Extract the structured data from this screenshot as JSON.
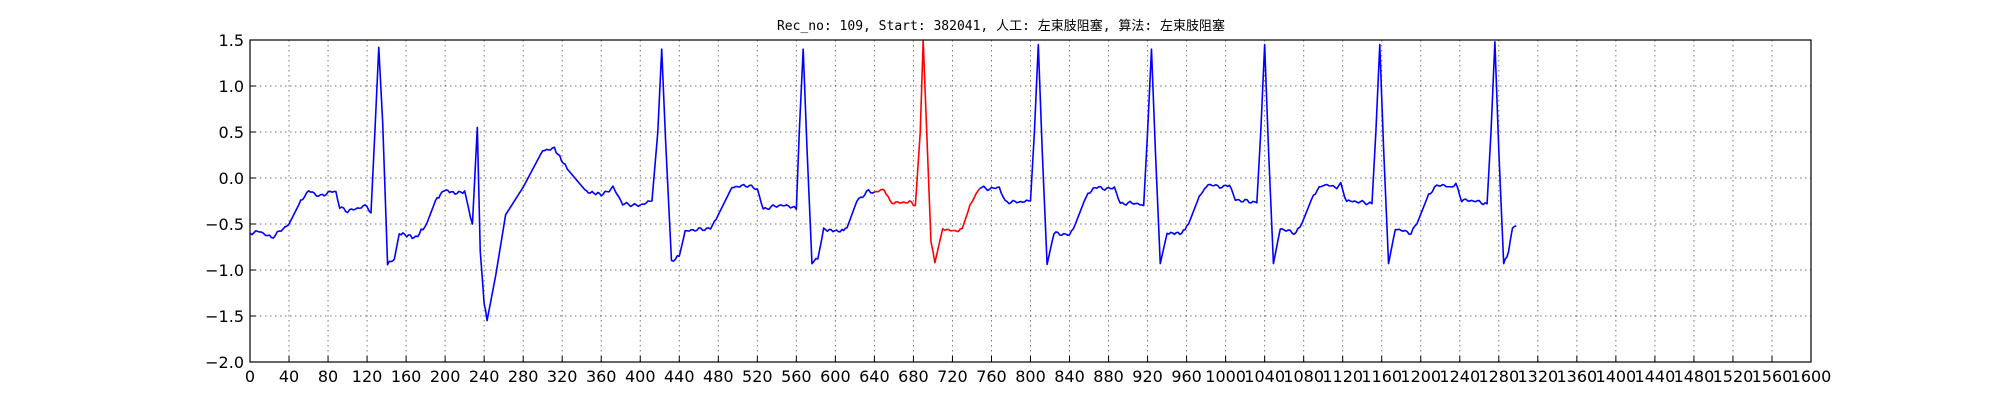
{
  "chart_data": {
    "type": "line",
    "title": "Rec_no: 109, Start: 382041, 人工: 左束肢阻塞, 算法: 左束肢阻塞",
    "xlabel": "",
    "ylabel": "",
    "xlim": [
      0,
      1600
    ],
    "ylim": [
      -2.0,
      1.5
    ],
    "grid": true,
    "x_ticks": [
      0,
      40,
      80,
      120,
      160,
      200,
      240,
      280,
      320,
      360,
      400,
      440,
      480,
      520,
      560,
      600,
      640,
      680,
      720,
      760,
      800,
      840,
      880,
      920,
      960,
      1000,
      1040,
      1080,
      1120,
      1160,
      1200,
      1240,
      1280,
      1320,
      1360,
      1400,
      1440,
      1480,
      1520,
      1560,
      1600
    ],
    "x_tick_labels": [
      "0",
      "40",
      "80",
      "120",
      "160",
      "200",
      "240",
      "280",
      "320",
      "360",
      "400",
      "440",
      "480",
      "520",
      "560",
      "600",
      "640",
      "680",
      "720",
      "760",
      "800",
      "840",
      "880",
      "920",
      "960",
      "1000",
      "1040",
      "1080",
      "1120",
      "1160",
      "1200",
      "1240",
      "1280",
      "1320",
      "1360",
      "1400",
      "1440",
      "1480",
      "1520",
      "1560",
      "1600"
    ],
    "y_ticks": [
      -2.0,
      -1.5,
      -1.0,
      -0.5,
      0.0,
      0.5,
      1.0,
      1.5
    ],
    "y_tick_labels": [
      "−2.0",
      "−1.5",
      "−1.0",
      "−0.5",
      "0.0",
      "0.5",
      "1.0",
      "1.5"
    ],
    "series_keypoints": [
      {
        "x": 0,
        "y": -0.6
      },
      {
        "x": 10,
        "y": -0.58
      },
      {
        "x": 22,
        "y": -0.65
      },
      {
        "x": 40,
        "y": -0.5
      },
      {
        "x": 52,
        "y": -0.25
      },
      {
        "x": 60,
        "y": -0.14
      },
      {
        "x": 72,
        "y": -0.2
      },
      {
        "x": 82,
        "y": -0.15
      },
      {
        "x": 88,
        "y": -0.15
      },
      {
        "x": 92,
        "y": -0.32
      },
      {
        "x": 100,
        "y": -0.36
      },
      {
        "x": 120,
        "y": -0.3
      },
      {
        "x": 124,
        "y": -0.38
      },
      {
        "x": 128,
        "y": 0.5
      },
      {
        "x": 132,
        "y": 1.42
      },
      {
        "x": 136,
        "y": 0.6
      },
      {
        "x": 141,
        "y": -0.93
      },
      {
        "x": 148,
        "y": -0.88
      },
      {
        "x": 153,
        "y": -0.6
      },
      {
        "x": 170,
        "y": -0.65
      },
      {
        "x": 181,
        "y": -0.5
      },
      {
        "x": 190,
        "y": -0.25
      },
      {
        "x": 199,
        "y": -0.13
      },
      {
        "x": 212,
        "y": -0.17
      },
      {
        "x": 220,
        "y": -0.14
      },
      {
        "x": 226,
        "y": -0.42
      },
      {
        "x": 228,
        "y": -0.5
      },
      {
        "x": 233,
        "y": 0.55
      },
      {
        "x": 236,
        "y": -0.8
      },
      {
        "x": 240,
        "y": -1.35
      },
      {
        "x": 243,
        "y": -1.55
      },
      {
        "x": 252,
        "y": -1.05
      },
      {
        "x": 262,
        "y": -0.4
      },
      {
        "x": 280,
        "y": -0.1
      },
      {
        "x": 300,
        "y": 0.3
      },
      {
        "x": 312,
        "y": 0.32
      },
      {
        "x": 325,
        "y": 0.1
      },
      {
        "x": 345,
        "y": -0.15
      },
      {
        "x": 362,
        "y": -0.18
      },
      {
        "x": 372,
        "y": -0.1
      },
      {
        "x": 382,
        "y": -0.28
      },
      {
        "x": 398,
        "y": -0.3
      },
      {
        "x": 412,
        "y": -0.25
      },
      {
        "x": 418,
        "y": 0.5
      },
      {
        "x": 422,
        "y": 1.4
      },
      {
        "x": 426,
        "y": 0.4
      },
      {
        "x": 432,
        "y": -0.9
      },
      {
        "x": 440,
        "y": -0.85
      },
      {
        "x": 446,
        "y": -0.58
      },
      {
        "x": 458,
        "y": -0.56
      },
      {
        "x": 472,
        "y": -0.55
      },
      {
        "x": 480,
        "y": -0.4
      },
      {
        "x": 494,
        "y": -0.1
      },
      {
        "x": 510,
        "y": -0.08
      },
      {
        "x": 520,
        "y": -0.12
      },
      {
        "x": 526,
        "y": -0.34
      },
      {
        "x": 540,
        "y": -0.3
      },
      {
        "x": 552,
        "y": -0.3
      },
      {
        "x": 560,
        "y": -0.34
      },
      {
        "x": 563,
        "y": 0.5
      },
      {
        "x": 567,
        "y": 1.4
      },
      {
        "x": 571,
        "y": 0.3
      },
      {
        "x": 576,
        "y": -0.92
      },
      {
        "x": 582,
        "y": -0.88
      },
      {
        "x": 588,
        "y": -0.56
      },
      {
        "x": 605,
        "y": -0.58
      },
      {
        "x": 612,
        "y": -0.54
      },
      {
        "x": 622,
        "y": -0.25
      },
      {
        "x": 634,
        "y": -0.14
      },
      {
        "x": 640,
        "y": -0.16
      },
      {
        "x": 650,
        "y": -0.12
      },
      {
        "x": 656,
        "y": -0.26
      },
      {
        "x": 664,
        "y": -0.27
      },
      {
        "x": 676,
        "y": -0.26
      },
      {
        "x": 682,
        "y": -0.3
      },
      {
        "x": 687,
        "y": 0.5
      },
      {
        "x": 690,
        "y": 1.5
      },
      {
        "x": 694,
        "y": 0.4
      },
      {
        "x": 698,
        "y": -0.7
      },
      {
        "x": 702,
        "y": -0.92
      },
      {
        "x": 710,
        "y": -0.55
      },
      {
        "x": 722,
        "y": -0.58
      },
      {
        "x": 730,
        "y": -0.55
      },
      {
        "x": 738,
        "y": -0.3
      },
      {
        "x": 748,
        "y": -0.1
      },
      {
        "x": 758,
        "y": -0.12
      },
      {
        "x": 768,
        "y": -0.1
      },
      {
        "x": 774,
        "y": -0.26
      },
      {
        "x": 790,
        "y": -0.26
      },
      {
        "x": 800,
        "y": -0.25
      },
      {
        "x": 804,
        "y": 0.5
      },
      {
        "x": 808,
        "y": 1.45
      },
      {
        "x": 812,
        "y": 0.3
      },
      {
        "x": 817,
        "y": -0.94
      },
      {
        "x": 824,
        "y": -0.6
      },
      {
        "x": 840,
        "y": -0.62
      },
      {
        "x": 846,
        "y": -0.5
      },
      {
        "x": 857,
        "y": -0.2
      },
      {
        "x": 866,
        "y": -0.1
      },
      {
        "x": 880,
        "y": -0.12
      },
      {
        "x": 886,
        "y": -0.1
      },
      {
        "x": 892,
        "y": -0.28
      },
      {
        "x": 906,
        "y": -0.27
      },
      {
        "x": 916,
        "y": -0.3
      },
      {
        "x": 920,
        "y": 0.5
      },
      {
        "x": 924,
        "y": 1.4
      },
      {
        "x": 928,
        "y": 0.3
      },
      {
        "x": 933,
        "y": -0.93
      },
      {
        "x": 940,
        "y": -0.6
      },
      {
        "x": 955,
        "y": -0.6
      },
      {
        "x": 962,
        "y": -0.5
      },
      {
        "x": 973,
        "y": -0.2
      },
      {
        "x": 982,
        "y": -0.07
      },
      {
        "x": 998,
        "y": -0.1
      },
      {
        "x": 1004,
        "y": -0.07
      },
      {
        "x": 1010,
        "y": -0.24
      },
      {
        "x": 1022,
        "y": -0.25
      },
      {
        "x": 1032,
        "y": -0.27
      },
      {
        "x": 1036,
        "y": 0.5
      },
      {
        "x": 1040,
        "y": 1.45
      },
      {
        "x": 1044,
        "y": 0.3
      },
      {
        "x": 1049,
        "y": -0.93
      },
      {
        "x": 1056,
        "y": -0.55
      },
      {
        "x": 1072,
        "y": -0.6
      },
      {
        "x": 1078,
        "y": -0.5
      },
      {
        "x": 1090,
        "y": -0.18
      },
      {
        "x": 1100,
        "y": -0.07
      },
      {
        "x": 1114,
        "y": -0.1
      },
      {
        "x": 1118,
        "y": -0.07
      },
      {
        "x": 1124,
        "y": -0.25
      },
      {
        "x": 1138,
        "y": -0.26
      },
      {
        "x": 1150,
        "y": -0.28
      },
      {
        "x": 1154,
        "y": 0.5
      },
      {
        "x": 1158,
        "y": 1.45
      },
      {
        "x": 1162,
        "y": 0.3
      },
      {
        "x": 1167,
        "y": -0.93
      },
      {
        "x": 1174,
        "y": -0.55
      },
      {
        "x": 1190,
        "y": -0.6
      },
      {
        "x": 1196,
        "y": -0.5
      },
      {
        "x": 1208,
        "y": -0.18
      },
      {
        "x": 1218,
        "y": -0.07
      },
      {
        "x": 1230,
        "y": -0.1
      },
      {
        "x": 1236,
        "y": -0.07
      },
      {
        "x": 1242,
        "y": -0.24
      },
      {
        "x": 1256,
        "y": -0.25
      },
      {
        "x": 1268,
        "y": -0.28
      },
      {
        "x": 1272,
        "y": 0.5
      },
      {
        "x": 1276,
        "y": 1.48
      },
      {
        "x": 1280,
        "y": 0.3
      },
      {
        "x": 1285,
        "y": -0.93
      },
      {
        "x": 1290,
        "y": -0.8
      },
      {
        "x": 1294,
        "y": -0.53
      },
      {
        "x": 1298,
        "y": -0.52
      }
    ],
    "series": [
      {
        "color": "#0000ff",
        "x_range": [
          0,
          640
        ]
      },
      {
        "color": "#ff0000",
        "x_range": [
          640,
          748
        ]
      },
      {
        "color": "#0000ff",
        "x_range": [
          748,
          1298
        ]
      }
    ]
  }
}
